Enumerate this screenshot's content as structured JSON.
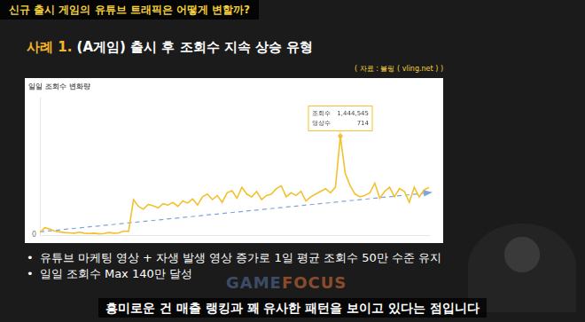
{
  "slide": {
    "header": "신규 출시 게임의 유튜브 트래픽은 어떻게 변할까?",
    "case_label": "사례 1.",
    "case_title": "(A게임) 출시 후 조회수 지속 상승 유형",
    "source": "( 자료 : 블링 ( vling.net ) )",
    "bullets": [
      "유튜브 마케팅 영상 + 자생 발생 영상 증가로 1일 평균 조회수 50만 수준 유지",
      "일일 조회수 Max 140만 달성"
    ],
    "watermark": [
      "GAME",
      "FOCUS"
    ],
    "caption": "흥미로운 건 매출 랭킹과 꽤 유사한 패턴을 보이고 있다는 점입니다"
  },
  "chart_data": {
    "type": "line",
    "title": "일일 조회수 변화량",
    "categories": [
      null,
      null,
      null,
      null,
      null,
      null,
      null,
      null,
      null,
      null,
      null,
      null,
      null,
      null,
      null,
      null,
      null,
      null,
      null,
      null,
      null,
      null,
      null,
      null,
      null,
      null,
      null,
      null,
      null,
      null,
      null,
      null,
      null,
      null,
      null,
      null,
      null,
      null,
      null,
      null,
      null,
      null,
      null,
      null,
      null,
      null,
      null,
      null,
      null,
      null,
      null,
      null,
      null,
      null,
      null,
      null,
      null,
      null,
      null,
      null,
      null,
      null,
      null,
      null,
      null,
      null,
      null,
      null,
      null,
      null,
      null,
      null,
      null,
      null,
      null,
      null,
      null,
      null,
      null,
      null
    ],
    "values": [
      40000,
      110000,
      90000,
      60000,
      50000,
      40000,
      35000,
      30000,
      45000,
      30000,
      25000,
      30000,
      20000,
      25000,
      40000,
      30000,
      35000,
      60000,
      55000,
      520000,
      420000,
      380000,
      450000,
      430000,
      400000,
      460000,
      440000,
      480000,
      420000,
      500000,
      470000,
      530000,
      440000,
      560000,
      600000,
      520000,
      580000,
      480000,
      620000,
      650000,
      540000,
      700000,
      600000,
      560000,
      640000,
      520000,
      580000,
      600000,
      680000,
      720000,
      560000,
      620000,
      580000,
      640000,
      500000,
      560000,
      600000,
      640000,
      680000,
      620000,
      700000,
      1444545,
      900000,
      720000,
      600000,
      560000,
      580000,
      620000,
      760000,
      540000,
      640000,
      700000,
      560000,
      680000,
      640000,
      480000,
      700000,
      560000,
      660000,
      700000
    ],
    "color": "#f2c12e",
    "trend": {
      "values": [
        50000,
        620000
      ],
      "color": "#7ea6d8",
      "line_style": "dashed"
    },
    "annotation": {
      "index": 61,
      "lines": [
        [
          "조회수",
          "1,444,545"
        ],
        [
          "영상수",
          "714"
        ]
      ]
    },
    "ylim": [
      0,
      2000000
    ],
    "yticks": [
      0
    ],
    "grid": false,
    "tick_labels": "y"
  }
}
